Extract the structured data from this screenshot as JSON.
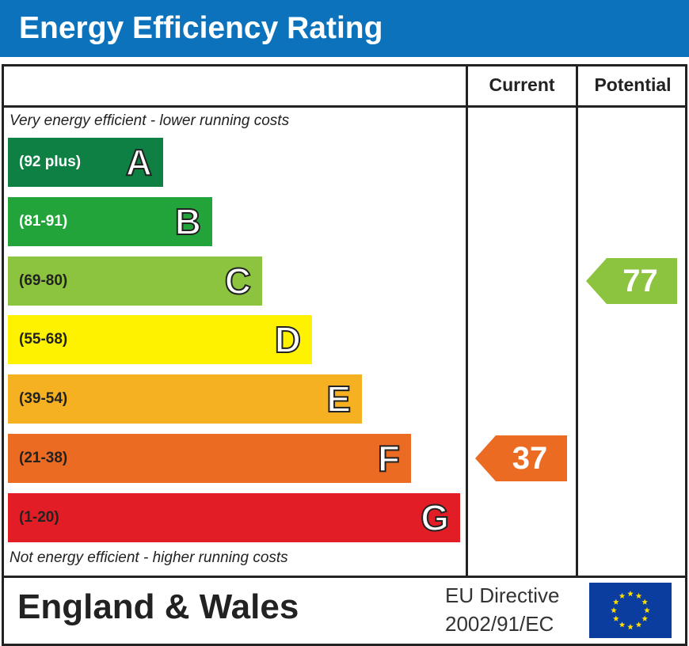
{
  "header": {
    "title": "Energy Efficiency Rating"
  },
  "columns": {
    "current": "Current",
    "potential": "Potential"
  },
  "notes": {
    "top": "Very energy efficient - lower running costs",
    "bottom": "Not energy efficient - higher running costs"
  },
  "chart_data": {
    "type": "bar",
    "title": "Energy Efficiency Rating",
    "categories": [
      "A",
      "B",
      "C",
      "D",
      "E",
      "F",
      "G"
    ],
    "bands": [
      {
        "letter": "A",
        "range": "(92 plus)",
        "min": 92,
        "max": 100,
        "color": "#0f8043",
        "text_color": "#ffffff"
      },
      {
        "letter": "B",
        "range": "(81-91)",
        "min": 81,
        "max": 91,
        "color": "#22a43a",
        "text_color": "#ffffff"
      },
      {
        "letter": "C",
        "range": "(69-80)",
        "min": 69,
        "max": 80,
        "color": "#8cc43f",
        "text_color": "#222222"
      },
      {
        "letter": "D",
        "range": "(55-68)",
        "min": 55,
        "max": 68,
        "color": "#fff200",
        "text_color": "#222222"
      },
      {
        "letter": "E",
        "range": "(39-54)",
        "min": 39,
        "max": 54,
        "color": "#f6b122",
        "text_color": "#222222"
      },
      {
        "letter": "F",
        "range": "(21-38)",
        "min": 21,
        "max": 38,
        "color": "#ec6b23",
        "text_color": "#222222"
      },
      {
        "letter": "G",
        "range": "(1-20)",
        "min": 1,
        "max": 20,
        "color": "#e31d25",
        "text_color": "#222222"
      }
    ],
    "ratings": {
      "current": {
        "value": 37,
        "band": "F",
        "color": "#ec6b23"
      },
      "potential": {
        "value": 77,
        "band": "C",
        "color": "#8cc43f"
      }
    }
  },
  "footer": {
    "region": "England & Wales",
    "directive_line1": "EU Directive",
    "directive_line2": "2002/91/EC"
  },
  "icons": {
    "flag": "eu-flag-icon"
  }
}
